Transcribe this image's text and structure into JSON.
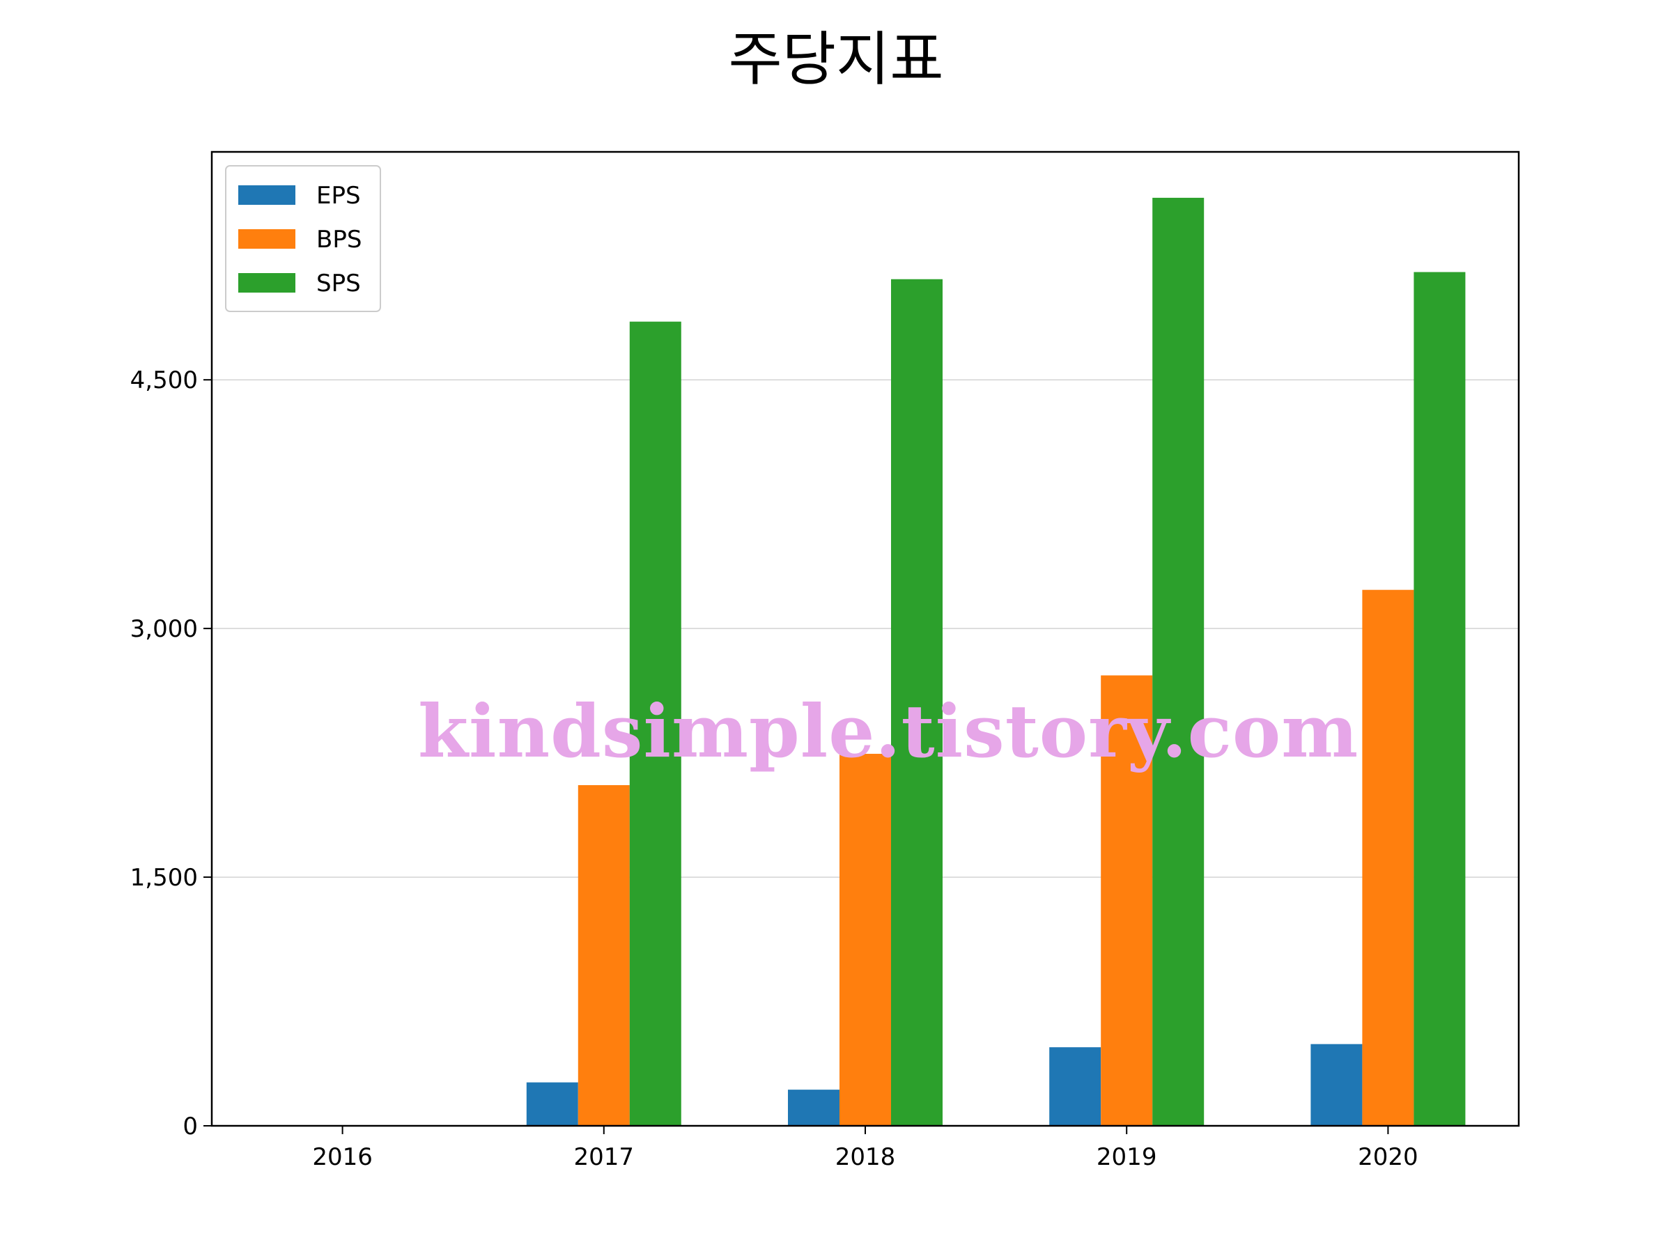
{
  "chart_data": {
    "type": "bar",
    "title": "주당지표",
    "xlabel": "",
    "ylabel": "",
    "categories": [
      "2016",
      "2017",
      "2018",
      "2019",
      "2020"
    ],
    "series": [
      {
        "name": "EPS",
        "color": "#1f77b4",
        "values": [
          0,
          262,
          218,
          474,
          493
        ]
      },
      {
        "name": "BPS",
        "color": "#ff7f0e",
        "values": [
          0,
          2055,
          2244,
          2717,
          3233
        ]
      },
      {
        "name": "SPS",
        "color": "#2ca02c",
        "values": [
          0,
          4851,
          5107,
          5598,
          5150
        ]
      }
    ],
    "ylim": [
      0,
      5875
    ],
    "yticks": [
      0,
      1500,
      3000,
      4500
    ],
    "ytick_labels": [
      "0",
      "1,500",
      "3,000",
      "4,500"
    ],
    "grid": "horizontal",
    "legend_position": "top-left"
  },
  "watermark": "kindsimple.tistory.com"
}
